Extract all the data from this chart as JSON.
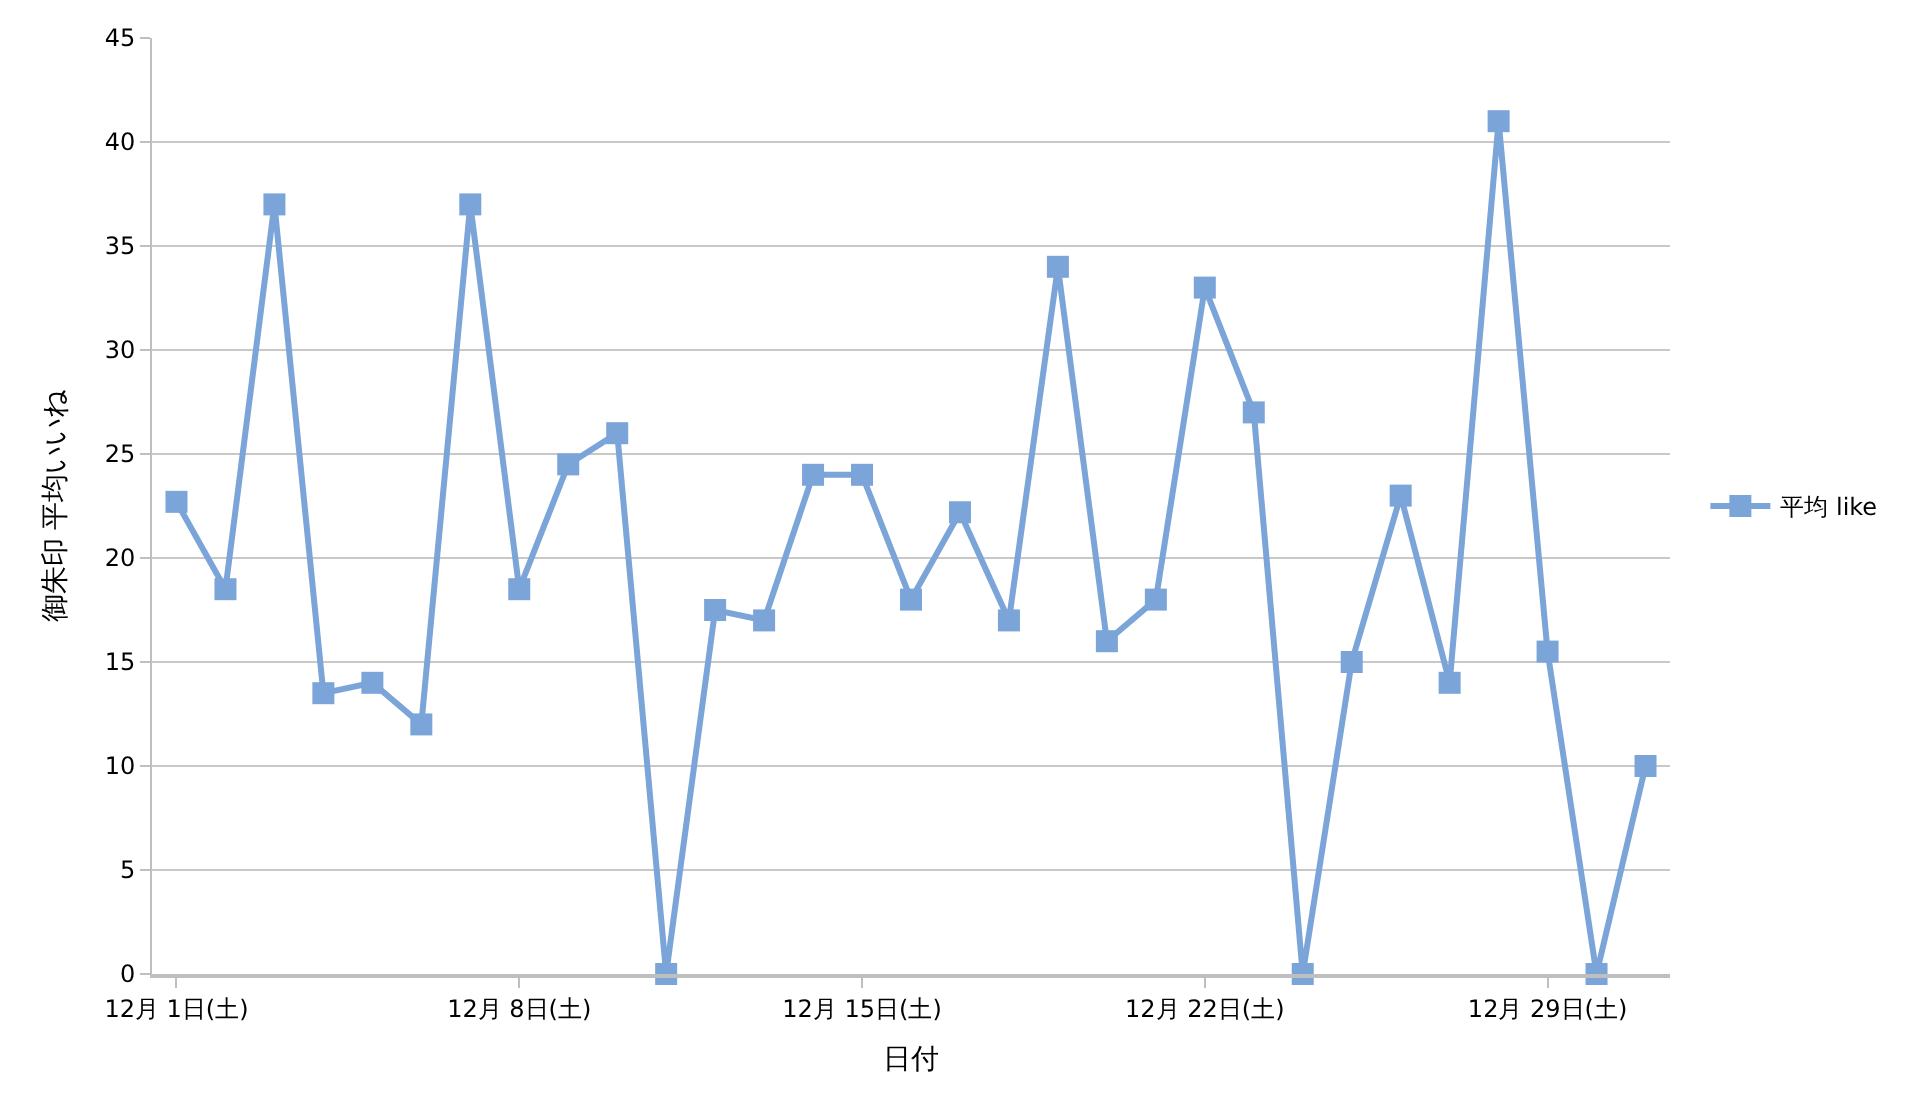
{
  "chart_data": {
    "type": "line",
    "xlabel": "日付",
    "ylabel": "御朱印 平均いいね",
    "categories": [
      "12月 1日(土)",
      null,
      null,
      null,
      null,
      null,
      null,
      "12月 8日(土)",
      null,
      null,
      null,
      null,
      null,
      null,
      "12月 15日(土)",
      null,
      null,
      null,
      null,
      null,
      null,
      "12月 22日(土)",
      null,
      null,
      null,
      null,
      null,
      null,
      "12月 29日(土)",
      null,
      null
    ],
    "series": [
      {
        "name": "平均 like",
        "color": "#7ba4d8",
        "values": [
          22.7,
          18.5,
          37,
          13.5,
          14,
          12,
          37,
          18.5,
          24.5,
          26,
          0,
          17.5,
          17,
          24,
          24,
          18,
          22.2,
          17,
          34,
          16,
          18,
          33,
          27,
          0,
          15,
          23,
          14,
          41,
          15.5,
          0,
          10
        ]
      }
    ],
    "ylim": [
      0,
      45
    ],
    "yticks": [
      0,
      5,
      10,
      15,
      20,
      25,
      30,
      35,
      40,
      45
    ],
    "grid": "y",
    "legend": "right",
    "marker": "square",
    "line_style": "solid"
  }
}
